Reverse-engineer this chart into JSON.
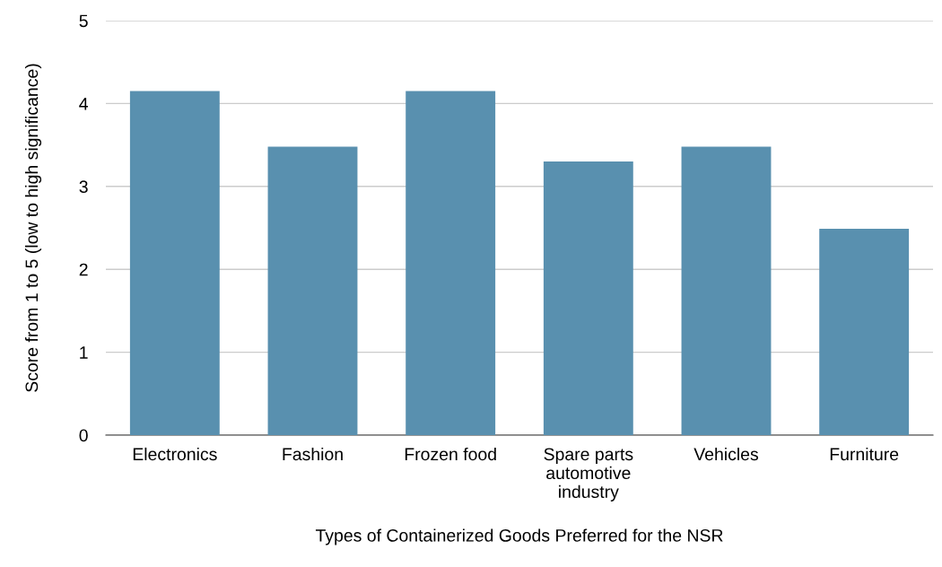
{
  "chart_data": {
    "type": "bar",
    "xlabel": "Types of Containerized Goods Preferred for the NSR",
    "ylabel": "Score from 1 to 5 (low to high significance)",
    "categories": [
      "Electronics",
      "Fashion",
      "Frozen food",
      "Spare parts\nautomotive\nindustry",
      "Vehicles",
      "Furniture"
    ],
    "values": [
      4.15,
      3.48,
      4.15,
      3.3,
      3.48,
      2.49
    ],
    "color": "#5990af",
    "ylim": [
      0,
      5
    ],
    "yticks": [
      0,
      1,
      2,
      3,
      4,
      5
    ],
    "grid": "y"
  }
}
